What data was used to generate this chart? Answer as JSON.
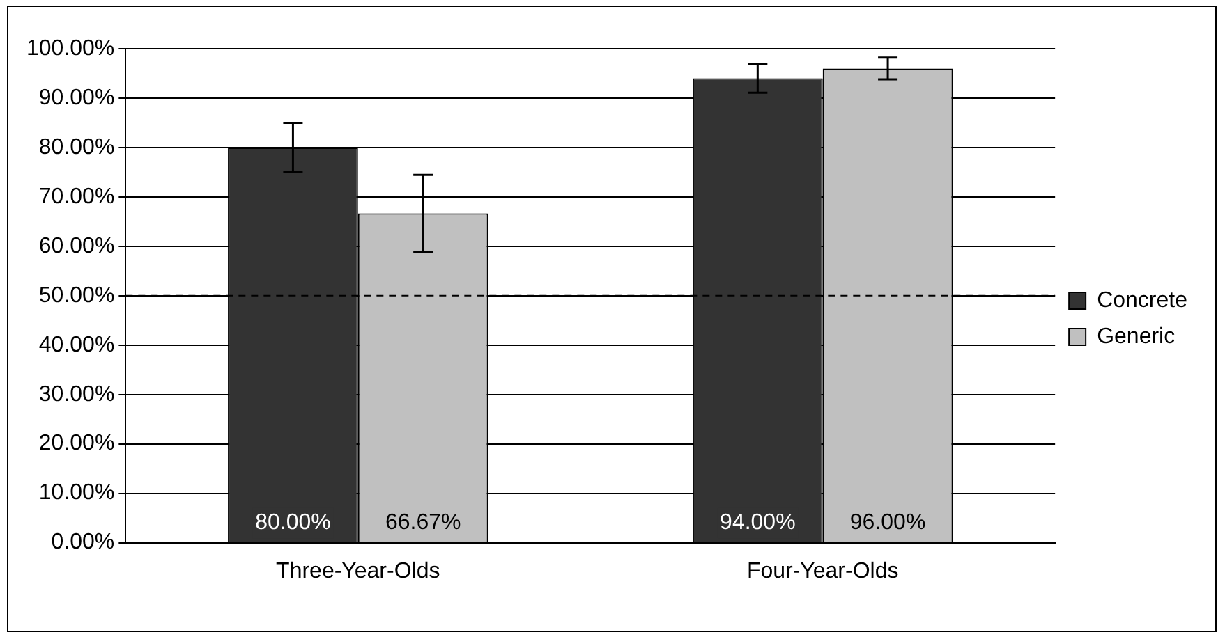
{
  "chart_data": {
    "type": "bar",
    "categories": [
      "Three-Year-Olds",
      "Four-Year-Olds"
    ],
    "series": [
      {
        "name": "Concrete",
        "color": "#333333",
        "values": [
          80,
          94
        ],
        "errors": [
          5,
          2.9
        ],
        "value_labels": [
          "80.00%",
          "94.00%"
        ]
      },
      {
        "name": "Generic",
        "color": "#c0c0c0",
        "values": [
          66.67,
          96
        ],
        "errors": [
          7.8,
          2.2
        ],
        "value_labels": [
          "66.67%",
          "96.00%"
        ]
      }
    ],
    "ylim": [
      0,
      100
    ],
    "yticks": [
      {
        "value": 0,
        "label": "0.00%"
      },
      {
        "value": 10,
        "label": "10.00%"
      },
      {
        "value": 20,
        "label": "20.00%"
      },
      {
        "value": 30,
        "label": "30.00%"
      },
      {
        "value": 40,
        "label": "40.00%"
      },
      {
        "value": 50,
        "label": "50.00%"
      },
      {
        "value": 60,
        "label": "60.00%"
      },
      {
        "value": 70,
        "label": "70.00%"
      },
      {
        "value": 80,
        "label": "80.00%"
      },
      {
        "value": 90,
        "label": "90.00%"
      },
      {
        "value": 100,
        "label": "100.00%"
      }
    ],
    "ref_lines": [
      {
        "axis": "y",
        "value": 50,
        "color": "#000000",
        "line_style": "dashed"
      }
    ],
    "grid": "y",
    "legend": "right"
  }
}
